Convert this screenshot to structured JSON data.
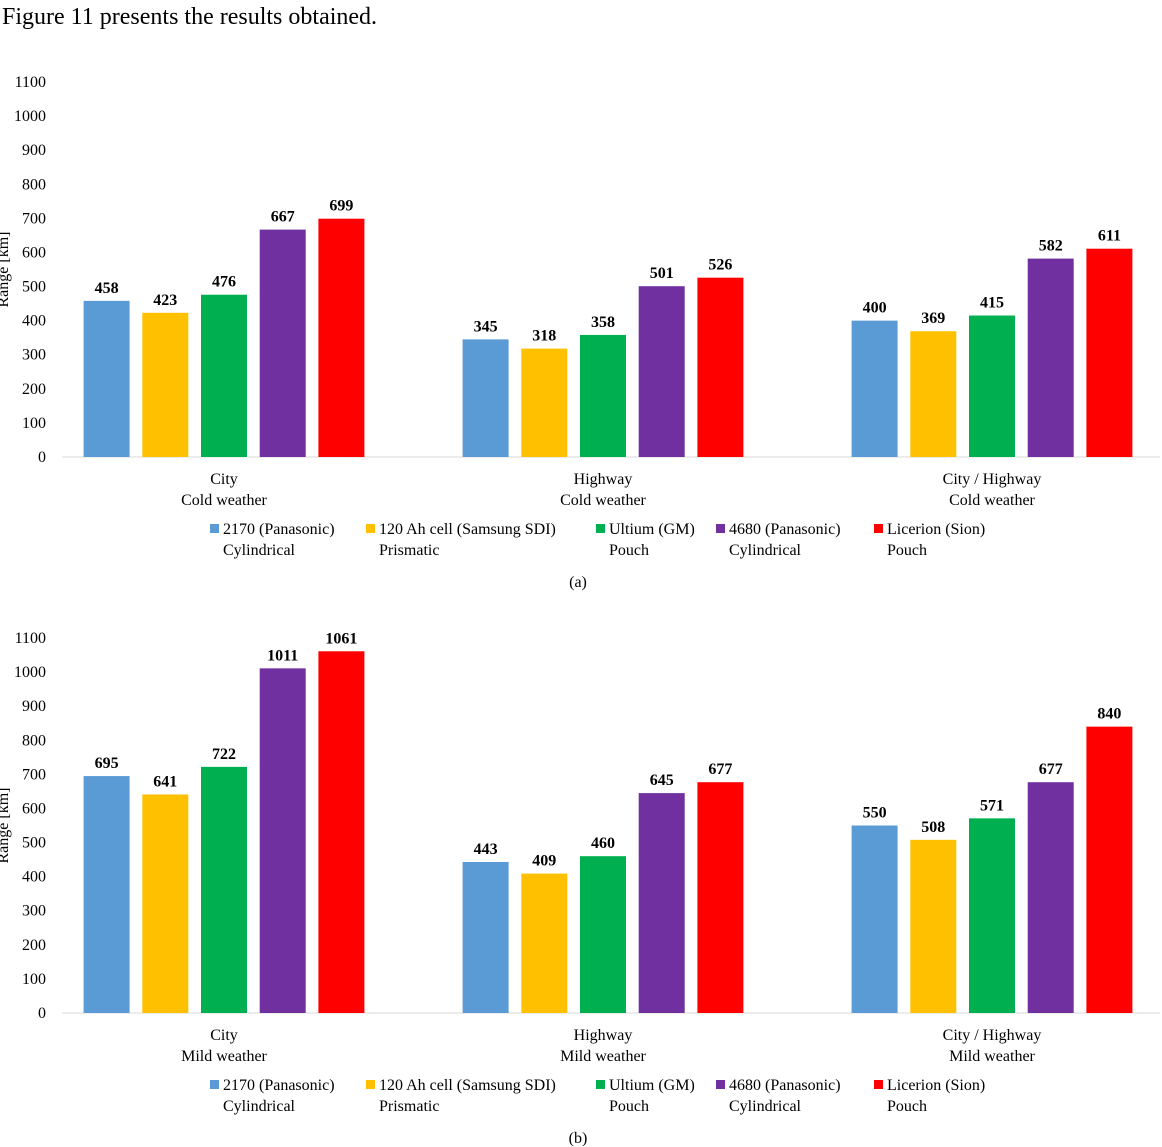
{
  "intro_text": "Figure 11 presents the results obtained.",
  "colors": [
    "#5b9bd5",
    "#ffc000",
    "#00b050",
    "#7030a0",
    "#ff0000"
  ],
  "chart_data": [
    {
      "type": "bar",
      "caption": "(a)",
      "ylabel": "Range [km]",
      "ylim": [
        0,
        1100
      ],
      "yticks": [
        0,
        100,
        200,
        300,
        400,
        500,
        600,
        700,
        800,
        900,
        1000,
        1100
      ],
      "categories": [
        [
          "City",
          "Cold weather"
        ],
        [
          "Highway",
          "Cold weather"
        ],
        [
          "City / Highway",
          "Cold weather"
        ]
      ],
      "legend_position": "bottom",
      "series": [
        {
          "name": [
            "2170 (Panasonic)",
            "Cylindrical"
          ],
          "values": [
            458,
            345,
            400
          ]
        },
        {
          "name": [
            "120 Ah cell (Samsung SDI)",
            "Prismatic"
          ],
          "values": [
            423,
            318,
            369
          ]
        },
        {
          "name": [
            "Ultium (GM)",
            "Pouch"
          ],
          "values": [
            476,
            358,
            415
          ]
        },
        {
          "name": [
            "4680 (Panasonic)",
            "Cylindrical"
          ],
          "values": [
            667,
            501,
            582
          ]
        },
        {
          "name": [
            "Licerion (Sion)",
            "Pouch"
          ],
          "values": [
            699,
            526,
            611
          ]
        }
      ]
    },
    {
      "type": "bar",
      "caption": "(b)",
      "ylabel": "Range [km]",
      "ylim": [
        0,
        1100
      ],
      "yticks": [
        0,
        100,
        200,
        300,
        400,
        500,
        600,
        700,
        800,
        900,
        1000,
        1100
      ],
      "categories": [
        [
          "City",
          "Mild weather"
        ],
        [
          "Highway",
          "Mild weather"
        ],
        [
          "City / Highway",
          "Mild weather"
        ]
      ],
      "legend_position": "bottom",
      "series": [
        {
          "name": [
            "2170 (Panasonic)",
            "Cylindrical"
          ],
          "values": [
            695,
            443,
            550
          ]
        },
        {
          "name": [
            "120 Ah cell (Samsung SDI)",
            "Prismatic"
          ],
          "values": [
            641,
            409,
            508
          ]
        },
        {
          "name": [
            "Ultium (GM)",
            "Pouch"
          ],
          "values": [
            722,
            460,
            571
          ]
        },
        {
          "name": [
            "4680 (Panasonic)",
            "Cylindrical"
          ],
          "values": [
            1011,
            645,
            677
          ]
        },
        {
          "name": [
            "Licerion (Sion)",
            "Pouch"
          ],
          "values": [
            1061,
            677,
            840
          ]
        }
      ]
    }
  ]
}
